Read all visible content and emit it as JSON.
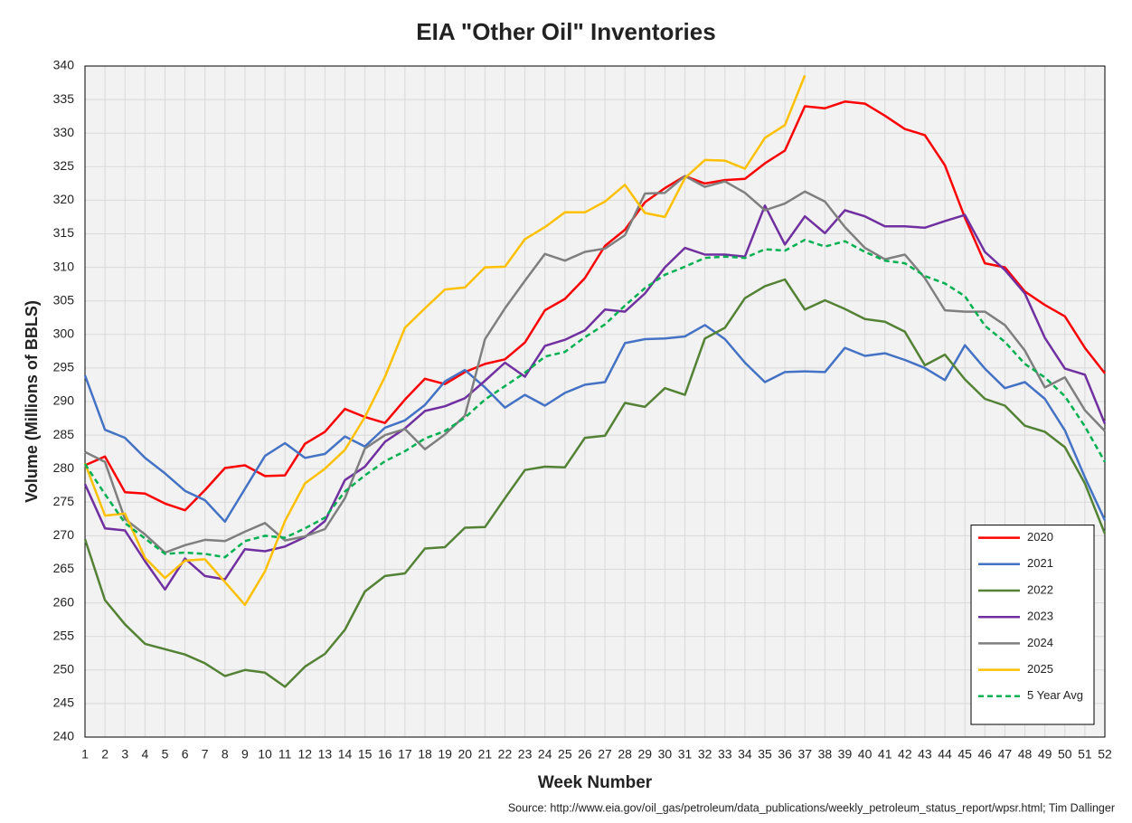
{
  "chart_data": {
    "type": "line",
    "title": "EIA \"Other Oil\" Inventories",
    "x_label": "Week Number",
    "y_label": "Volume (Millions of BBLS)",
    "source": "Source: http://www.eia.gov/oil_gas/petroleum/data_publications/weekly_petroleum_status_report/wpsr.html; Tim Dallinger",
    "x": [
      1,
      2,
      3,
      4,
      5,
      6,
      7,
      8,
      9,
      10,
      11,
      12,
      13,
      14,
      15,
      16,
      17,
      18,
      19,
      20,
      21,
      22,
      23,
      24,
      25,
      26,
      27,
      28,
      29,
      30,
      31,
      32,
      33,
      34,
      35,
      36,
      37,
      38,
      39,
      40,
      41,
      42,
      43,
      44,
      45,
      46,
      47,
      48,
      49,
      50,
      51,
      52
    ],
    "xlim": [
      1,
      52
    ],
    "xticks": [
      1,
      2,
      3,
      4,
      5,
      6,
      7,
      8,
      9,
      10,
      11,
      12,
      13,
      14,
      15,
      16,
      17,
      18,
      19,
      20,
      21,
      22,
      23,
      24,
      25,
      26,
      27,
      28,
      29,
      30,
      31,
      32,
      33,
      34,
      35,
      36,
      37,
      38,
      39,
      40,
      41,
      42,
      43,
      44,
      45,
      46,
      47,
      48,
      49,
      50,
      51,
      52
    ],
    "ylim": [
      240,
      340
    ],
    "yticks": [
      240,
      245,
      250,
      255,
      260,
      265,
      270,
      275,
      280,
      285,
      290,
      295,
      300,
      305,
      310,
      315,
      320,
      325,
      330,
      335,
      340
    ],
    "grid": true,
    "legend": "lower right",
    "series": [
      {
        "name": "2020",
        "color": "#ff0000",
        "dash": false,
        "values": [
          280.5,
          281.8,
          276.5,
          276.3,
          274.8,
          273.8,
          276.8,
          280.1,
          280.5,
          278.9,
          279.0,
          283.7,
          285.5,
          288.9,
          287.7,
          286.8,
          290.3,
          293.4,
          292.6,
          294.4,
          295.6,
          296.3,
          298.8,
          303.6,
          305.3,
          308.4,
          313.2,
          315.6,
          319.7,
          321.8,
          323.6,
          322.5,
          323.0,
          323.2,
          325.5,
          327.4,
          334.0,
          333.7,
          334.7,
          334.4,
          332.6,
          330.6,
          329.7,
          325.2,
          317.4,
          310.6,
          310.0,
          306.4,
          304.4,
          302.7,
          298.0,
          294.2
        ]
      },
      {
        "name": "2021",
        "color": "#4472c4",
        "dash": false,
        "values": [
          293.9,
          285.8,
          284.6,
          281.6,
          279.3,
          276.7,
          275.3,
          272.1,
          277.0,
          281.9,
          283.8,
          281.6,
          282.2,
          284.8,
          283.3,
          286.1,
          287.2,
          289.5,
          293.0,
          294.7,
          292.1,
          289.1,
          291.0,
          289.4,
          291.3,
          292.5,
          292.9,
          298.7,
          299.3,
          299.4,
          299.7,
          301.4,
          299.3,
          295.8,
          292.9,
          294.4,
          294.5,
          294.4,
          298.0,
          296.8,
          297.2,
          296.2,
          295.0,
          293.2,
          298.4,
          294.9,
          292.0,
          292.9,
          290.4,
          285.7,
          278.7,
          272.3
        ]
      },
      {
        "name": "2022",
        "color": "#548235",
        "dash": false,
        "values": [
          269.5,
          260.4,
          256.8,
          253.9,
          253.1,
          252.3,
          251.0,
          249.1,
          250.0,
          249.6,
          247.5,
          250.5,
          252.4,
          256.0,
          261.7,
          264.0,
          264.4,
          268.1,
          268.3,
          271.2,
          271.3,
          275.6,
          279.8,
          280.3,
          280.2,
          284.6,
          284.9,
          289.8,
          289.2,
          292.0,
          291.0,
          299.4,
          301.0,
          305.4,
          307.2,
          308.2,
          303.7,
          305.1,
          303.8,
          302.3,
          301.9,
          300.4,
          295.4,
          297.0,
          293.3,
          290.4,
          289.4,
          286.4,
          285.5,
          283.2,
          277.8,
          270.3
        ]
      },
      {
        "name": "2023",
        "color": "#7030a0",
        "dash": false,
        "values": [
          277.7,
          271.1,
          270.8,
          266.2,
          262.0,
          266.6,
          264.0,
          263.5,
          268.0,
          267.7,
          268.4,
          269.8,
          272.2,
          278.3,
          280.3,
          284.0,
          286.0,
          288.6,
          289.3,
          290.5,
          293.1,
          295.8,
          293.7,
          298.3,
          299.2,
          300.6,
          303.7,
          303.4,
          306.1,
          310.0,
          312.9,
          311.9,
          311.9,
          311.6,
          319.2,
          313.4,
          317.6,
          315.1,
          318.5,
          317.6,
          316.1,
          316.1,
          315.9,
          316.9,
          317.8,
          312.3,
          309.6,
          306.1,
          299.5,
          294.9,
          294.0,
          286.7
        ]
      },
      {
        "name": "2024",
        "color": "#7f7f7f",
        "dash": false,
        "values": [
          282.5,
          281.0,
          272.5,
          270.2,
          267.5,
          268.6,
          269.4,
          269.2,
          270.6,
          271.9,
          269.3,
          269.9,
          271.0,
          275.6,
          283.0,
          285.0,
          285.9,
          282.9,
          285.1,
          287.9,
          299.3,
          303.9,
          308.0,
          312.0,
          311.0,
          312.3,
          312.8,
          314.8,
          321.0,
          321.1,
          323.6,
          322.0,
          322.8,
          321.1,
          318.5,
          319.5,
          321.3,
          319.8,
          316.0,
          312.9,
          311.2,
          311.9,
          308.4,
          303.6,
          303.4,
          303.4,
          301.4,
          297.6,
          292.1,
          293.6,
          288.7,
          285.6
        ]
      },
      {
        "name": "2025",
        "color": "#ffc000",
        "dash": false,
        "values": [
          280.8,
          273.0,
          273.3,
          266.7,
          263.7,
          266.3,
          266.5,
          263.1,
          259.7,
          264.7,
          272.2,
          277.8,
          280.0,
          282.8,
          287.7,
          293.7,
          301.0,
          303.9,
          306.7,
          307.0,
          310.0,
          310.1,
          314.2,
          316.0,
          318.2,
          318.2,
          319.8,
          322.3,
          318.1,
          317.5,
          323.3,
          326.0,
          325.9,
          324.7,
          329.3,
          331.2,
          338.6,
          null,
          null,
          null,
          null,
          null,
          null,
          null,
          null,
          null,
          null,
          null,
          null,
          null,
          null,
          null
        ]
      },
      {
        "name": "5 Year Avg",
        "color": "#00b050",
        "dash": true,
        "values": [
          280.7,
          276.2,
          271.9,
          269.6,
          267.3,
          267.5,
          267.3,
          266.8,
          269.2,
          270.0,
          269.7,
          271.1,
          272.7,
          276.6,
          279.0,
          281.1,
          282.6,
          284.5,
          285.6,
          287.6,
          290.3,
          292.3,
          294.3,
          296.7,
          297.4,
          299.6,
          301.5,
          304.3,
          306.9,
          308.9,
          310.1,
          311.4,
          311.6,
          311.4,
          312.7,
          312.5,
          314.1,
          313.1,
          313.9,
          312.3,
          311.0,
          310.6,
          308.7,
          307.6,
          305.7,
          301.3,
          298.9,
          295.6,
          293.6,
          290.8,
          286.3,
          281.0
        ]
      }
    ]
  }
}
